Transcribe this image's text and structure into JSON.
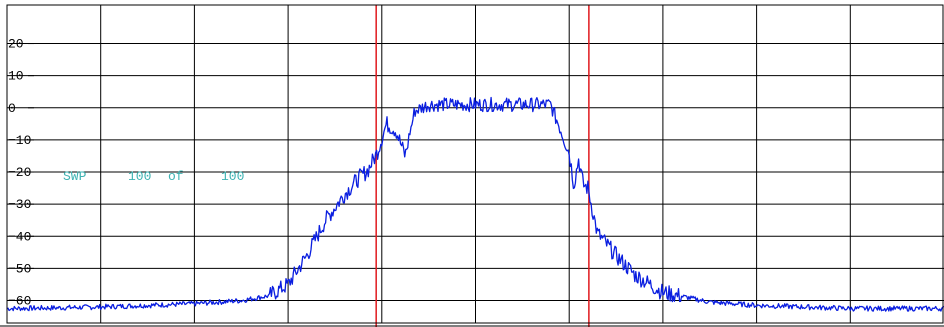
{
  "sweep_status": {
    "label": "SWP",
    "current": "100",
    "of_word": "of",
    "total": "100",
    "color": "#3fb3b3"
  },
  "colors": {
    "trace": "#0a1ee0",
    "marker_line": "#e0191e",
    "grid": "#000000",
    "background": "#ffffff"
  },
  "chart_data": {
    "type": "line",
    "title": "",
    "xlabel": "",
    "ylabel": "",
    "ylim": [
      -67,
      32
    ],
    "xlim": [
      0,
      10
    ],
    "y_ticks": [
      20,
      10,
      0,
      -10,
      -20,
      -30,
      -40,
      -50,
      -60
    ],
    "y_tick_labels": [
      "20",
      "10",
      "0",
      "−10",
      "−20",
      "−30",
      "−40",
      "−50",
      "−60"
    ],
    "grid": true,
    "vertical_markers": [
      3.94,
      6.21
    ],
    "series": [
      {
        "values_x": [
          0,
          0.5,
          1.0,
          1.5,
          2.0,
          2.5,
          2.8,
          3.0,
          3.2,
          3.4,
          3.6,
          3.75,
          3.85,
          3.95,
          4.05,
          4.15,
          4.25,
          4.35,
          4.5,
          5.0,
          5.5,
          5.8,
          5.9,
          6.0,
          6.05,
          6.1,
          6.15,
          6.2,
          6.3,
          6.5,
          6.7,
          7.0,
          7.5,
          8.0,
          8.5,
          9.0,
          9.5,
          10.0
        ],
        "values_y": [
          -62.5,
          -62.3,
          -62.0,
          -61.5,
          -61.0,
          -60.0,
          -58.5,
          -55.0,
          -46.0,
          -35.0,
          -27.0,
          -22.0,
          -19.5,
          -14.0,
          -5.0,
          -7.0,
          -15.0,
          -1.0,
          1.0,
          1.0,
          1.0,
          1.0,
          -6.0,
          -14.0,
          -24.0,
          -16.0,
          -24.0,
          -25.0,
          -39.0,
          -46.0,
          -52.0,
          -57.5,
          -60.5,
          -61.5,
          -62.0,
          -62.5,
          -62.5,
          -62.5
        ]
      }
    ]
  }
}
